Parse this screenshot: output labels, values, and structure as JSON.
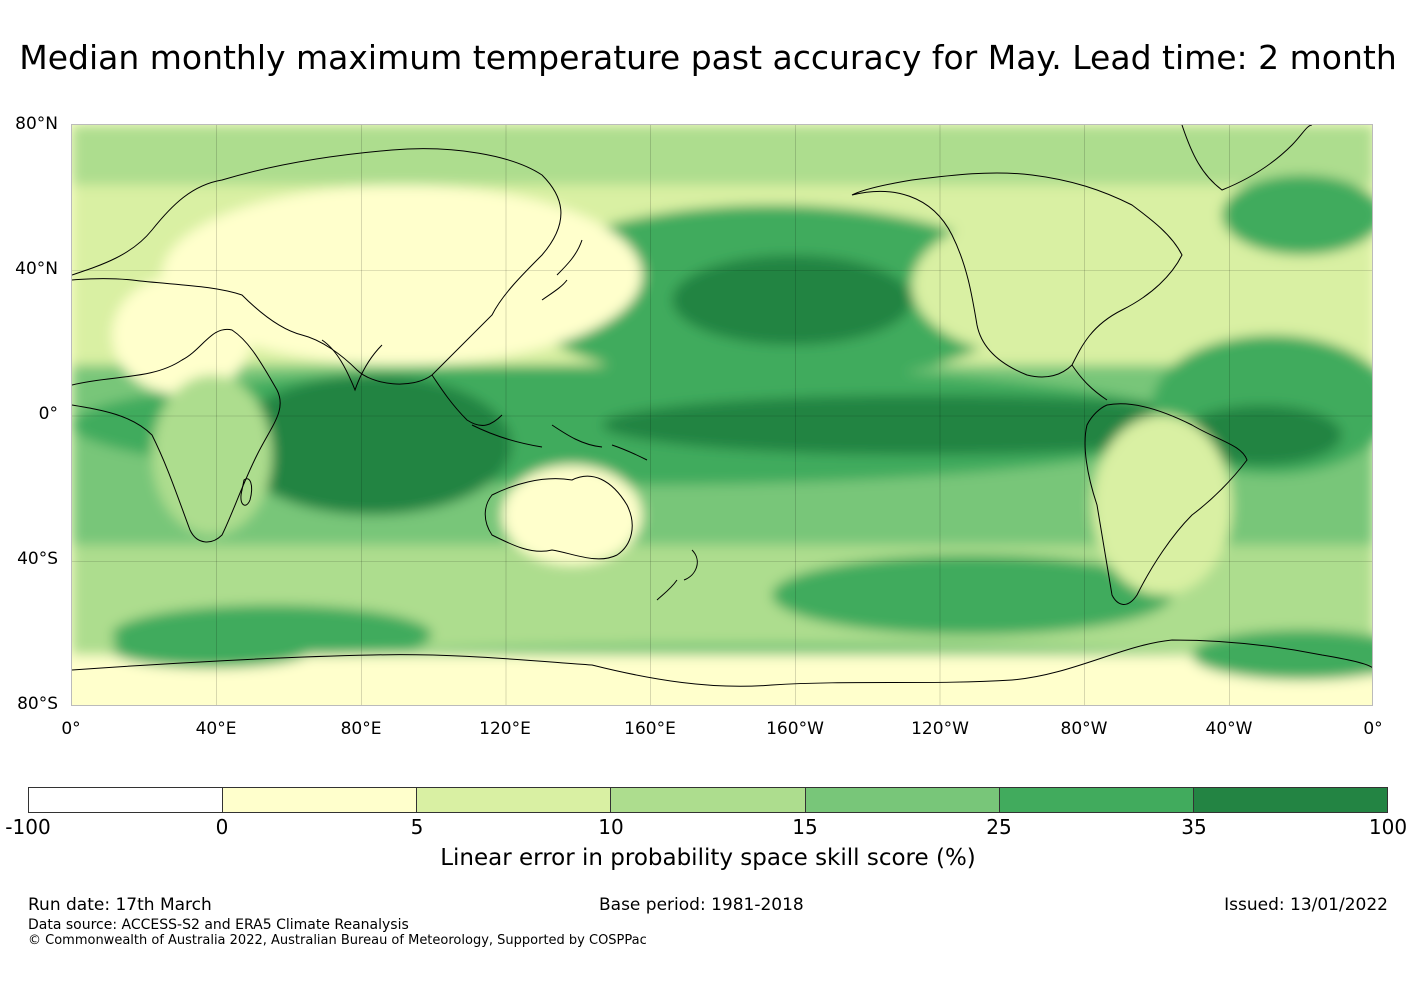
{
  "title": "Median monthly maximum temperature past accuracy for May. Lead time: 2 month",
  "map": {
    "lat_labels": [
      "80°N",
      "40°N",
      "0°",
      "40°S",
      "80°S"
    ],
    "lon_labels": [
      "0°",
      "40°E",
      "80°E",
      "120°E",
      "160°E",
      "160°W",
      "120°W",
      "80°W",
      "40°W",
      "0°"
    ]
  },
  "colorbar": {
    "ticks": [
      "-100",
      "0",
      "5",
      "10",
      "15",
      "25",
      "35",
      "100"
    ],
    "colors": [
      "#ffffff",
      "#ffffcc",
      "#d9f0a3",
      "#addd8e",
      "#78c679",
      "#41ab5d",
      "#238443"
    ],
    "label": "Linear error in probability space skill score (%)"
  },
  "footer": {
    "run_date": "Run date: 17th March",
    "base_period": "Base period: 1981-2018",
    "issued": "Issued: 13/01/2022",
    "data_source": "Data source: ACCESS-S2 and ERA5 Climate Reanalysis",
    "copyright": "© Commonwealth of Australia 2022, Australian Bureau of Meteorology, Supported by COSPPac"
  }
}
